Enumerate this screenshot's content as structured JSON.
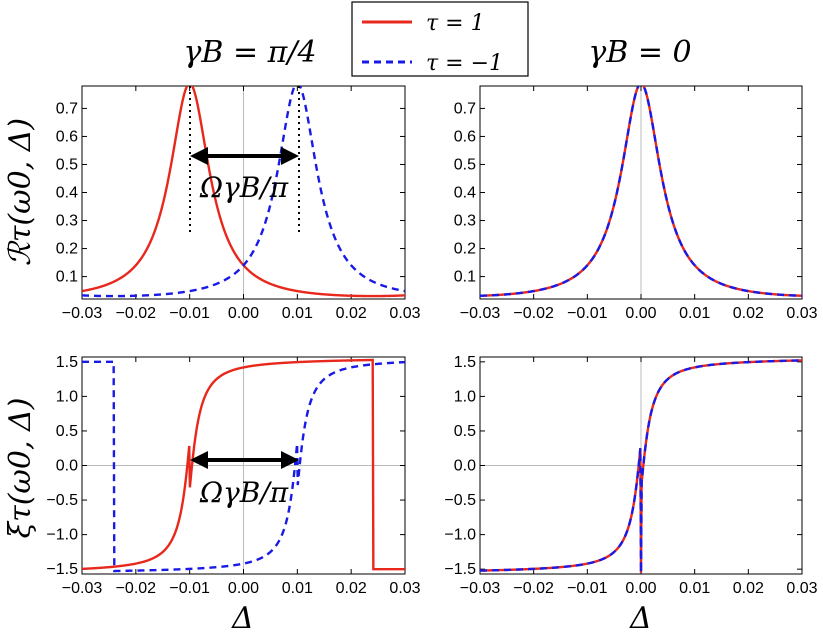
{
  "legend": {
    "entries": [
      {
        "label": "τ = 1",
        "color": "#e8281c",
        "style": "solid"
      },
      {
        "label": "τ = −1",
        "color": "#1a1ae6",
        "style": "dashed"
      }
    ]
  },
  "columns": {
    "left_title": "γB = π/4",
    "right_title": "γB = 0"
  },
  "axes": {
    "xlabel": "Δ",
    "ylabel_top": "ℛτ(ω0, Δ)",
    "ylabel_bottom": "ξτ(ω0, Δ)",
    "x_ticks": [
      "−0.03",
      "−0.02",
      "−0.01",
      "0.00",
      "0.01",
      "0.02",
      "0.03"
    ],
    "y_ticks_top": [
      "0.1",
      "0.2",
      "0.3",
      "0.4",
      "0.5",
      "0.6",
      "0.7"
    ],
    "y_ticks_bottom": [
      "−1.5",
      "−1.0",
      "−0.5",
      "0.0",
      "0.5",
      "1.0",
      "1.5"
    ]
  },
  "annotations": {
    "top": "ΩγB/π",
    "bottom": "ΩγB/π"
  },
  "chart_data": [
    {
      "type": "line",
      "panel": "top-left",
      "title": "γB = π/4",
      "xlabel": "",
      "ylabel": "ℛτ(ω0, Δ)",
      "xlim": [
        -0.03,
        0.03
      ],
      "ylim": [
        0.02,
        0.78
      ],
      "series": [
        {
          "name": "τ = 1",
          "peak_x": -0.01,
          "peak_y": 0.78,
          "width": 0.0045,
          "period": 0.068,
          "style": "solid"
        },
        {
          "name": "τ = −1",
          "peak_x": 0.01,
          "peak_y": 0.78,
          "width": 0.0045,
          "period": 0.068,
          "style": "dashed"
        }
      ]
    },
    {
      "type": "line",
      "panel": "top-right",
      "title": "γB = 0",
      "xlabel": "",
      "ylabel": "",
      "xlim": [
        -0.03,
        0.03
      ],
      "ylim": [
        0.02,
        0.78
      ],
      "series": [
        {
          "name": "τ = 1",
          "peak_x": 0.0,
          "peak_y": 0.78,
          "width": 0.0045,
          "period": 0.068,
          "style": "solid"
        },
        {
          "name": "τ = −1",
          "peak_x": 0.0,
          "peak_y": 0.78,
          "width": 0.0045,
          "period": 0.068,
          "style": "dashed"
        }
      ]
    },
    {
      "type": "line",
      "panel": "bottom-left",
      "title": "",
      "xlabel": "Δ",
      "ylabel": "ξτ(ω0, Δ)",
      "xlim": [
        -0.03,
        0.03
      ],
      "ylim": [
        -1.57,
        1.57
      ],
      "series": [
        {
          "name": "τ = 1",
          "jumps": [
            -0.01,
            0.024
          ],
          "style": "solid"
        },
        {
          "name": "τ = −1",
          "jumps": [
            0.01,
            -0.024
          ],
          "style": "dashed"
        }
      ]
    },
    {
      "type": "line",
      "panel": "bottom-right",
      "title": "",
      "xlabel": "Δ",
      "ylabel": "",
      "xlim": [
        -0.03,
        0.03
      ],
      "ylim": [
        -1.57,
        1.57
      ],
      "series": [
        {
          "name": "τ = 1",
          "jumps": [
            0.0
          ],
          "style": "solid"
        },
        {
          "name": "τ = −1",
          "jumps": [
            0.0
          ],
          "style": "dashed"
        }
      ]
    }
  ]
}
